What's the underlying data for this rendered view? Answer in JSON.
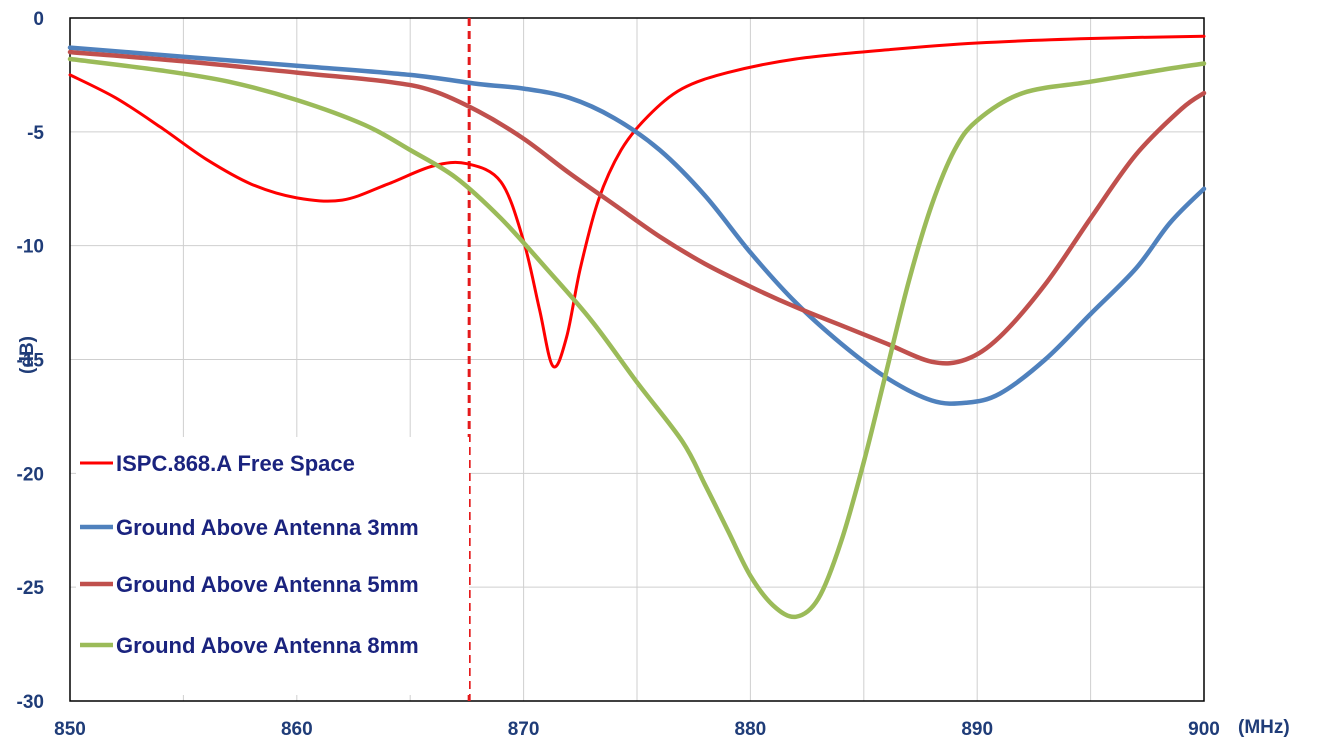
{
  "chart_data": {
    "type": "line",
    "title": "",
    "xlabel": "(MHz)",
    "ylabel": "(dB)",
    "xlim": [
      850,
      900
    ],
    "ylim": [
      -30,
      0
    ],
    "x_ticks": [
      "850",
      "860",
      "870",
      "880",
      "890",
      "900"
    ],
    "y_ticks": [
      "0",
      "-5",
      "-10",
      "-15",
      "-20",
      "-25",
      "-30"
    ],
    "grid": true,
    "legend_position": "lower-left",
    "marker_line": {
      "x": 867.6,
      "style": "dashed",
      "color": "#e41a1c"
    },
    "series": [
      {
        "name": "ISPC.868.A Free Space",
        "color": "#ff0000",
        "points": [
          [
            850,
            -2.5
          ],
          [
            852,
            -3.5
          ],
          [
            854,
            -4.8
          ],
          [
            856,
            -6.2
          ],
          [
            858,
            -7.3
          ],
          [
            860,
            -7.9
          ],
          [
            862,
            -8.0
          ],
          [
            864,
            -7.3
          ],
          [
            866,
            -6.5
          ],
          [
            867.5,
            -6.4
          ],
          [
            869,
            -7.2
          ],
          [
            870,
            -9.8
          ],
          [
            870.7,
            -12.8
          ],
          [
            871.3,
            -15.3
          ],
          [
            871.9,
            -14.0
          ],
          [
            872.5,
            -11.0
          ],
          [
            873.3,
            -8.0
          ],
          [
            874.3,
            -5.8
          ],
          [
            875.5,
            -4.3
          ],
          [
            877,
            -3.1
          ],
          [
            879,
            -2.4
          ],
          [
            882,
            -1.8
          ],
          [
            886,
            -1.4
          ],
          [
            890,
            -1.1
          ],
          [
            895,
            -0.9
          ],
          [
            900,
            -0.8
          ]
        ]
      },
      {
        "name": "Ground Above Antenna 3mm",
        "color": "#4f81bd",
        "points": [
          [
            850,
            -1.3
          ],
          [
            855,
            -1.7
          ],
          [
            860,
            -2.1
          ],
          [
            865,
            -2.5
          ],
          [
            868,
            -2.9
          ],
          [
            870,
            -3.1
          ],
          [
            872,
            -3.5
          ],
          [
            874,
            -4.4
          ],
          [
            876,
            -5.8
          ],
          [
            878,
            -7.8
          ],
          [
            880,
            -10.3
          ],
          [
            882,
            -12.5
          ],
          [
            884,
            -14.3
          ],
          [
            886,
            -15.8
          ],
          [
            888,
            -16.8
          ],
          [
            889.5,
            -16.9
          ],
          [
            891,
            -16.5
          ],
          [
            893,
            -15.0
          ],
          [
            895,
            -13.0
          ],
          [
            897,
            -11.0
          ],
          [
            898.5,
            -9.0
          ],
          [
            900,
            -7.5
          ]
        ]
      },
      {
        "name": "Ground Above Antenna 5mm",
        "color": "#c0504d",
        "points": [
          [
            850,
            -1.5
          ],
          [
            855,
            -1.9
          ],
          [
            860,
            -2.4
          ],
          [
            864,
            -2.8
          ],
          [
            866,
            -3.2
          ],
          [
            868,
            -4.1
          ],
          [
            870,
            -5.3
          ],
          [
            872,
            -6.8
          ],
          [
            874,
            -8.2
          ],
          [
            876,
            -9.6
          ],
          [
            878,
            -10.8
          ],
          [
            880,
            -11.8
          ],
          [
            882,
            -12.7
          ],
          [
            884,
            -13.5
          ],
          [
            886,
            -14.3
          ],
          [
            888,
            -15.1
          ],
          [
            889.5,
            -15.0
          ],
          [
            891,
            -14.0
          ],
          [
            893,
            -11.7
          ],
          [
            895,
            -8.8
          ],
          [
            897,
            -6.0
          ],
          [
            899,
            -4.0
          ],
          [
            900,
            -3.3
          ]
        ]
      },
      {
        "name": "Ground Above Antenna 8mm",
        "color": "#9bbb59",
        "points": [
          [
            850,
            -1.8
          ],
          [
            854,
            -2.3
          ],
          [
            857,
            -2.8
          ],
          [
            860,
            -3.6
          ],
          [
            863,
            -4.7
          ],
          [
            865,
            -5.8
          ],
          [
            867,
            -7.0
          ],
          [
            869,
            -8.8
          ],
          [
            871,
            -11.0
          ],
          [
            873,
            -13.3
          ],
          [
            875,
            -16.0
          ],
          [
            877,
            -18.6
          ],
          [
            878,
            -20.5
          ],
          [
            879,
            -22.5
          ],
          [
            880,
            -24.5
          ],
          [
            881,
            -25.8
          ],
          [
            882,
            -26.3
          ],
          [
            883,
            -25.5
          ],
          [
            884,
            -23.0
          ],
          [
            885,
            -19.5
          ],
          [
            886,
            -15.5
          ],
          [
            887,
            -11.5
          ],
          [
            888,
            -8.2
          ],
          [
            889,
            -5.8
          ],
          [
            890,
            -4.5
          ],
          [
            892,
            -3.3
          ],
          [
            895,
            -2.8
          ],
          [
            898,
            -2.3
          ],
          [
            900,
            -2.0
          ]
        ]
      }
    ]
  }
}
